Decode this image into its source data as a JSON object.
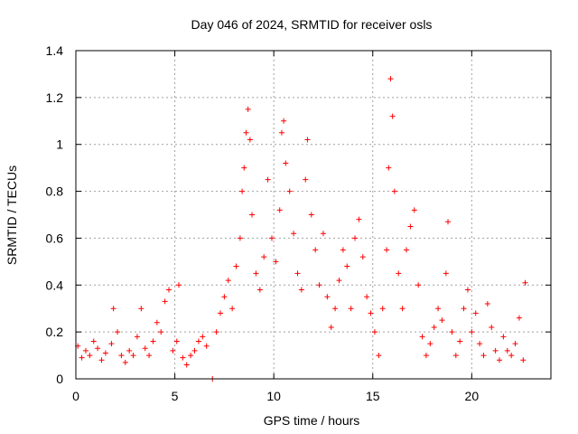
{
  "chart_data": {
    "type": "scatter",
    "title": "Day 046 of 2024, SRMTID for receiver osls",
    "xlabel": "GPS time / hours",
    "ylabel": "SRMTID / TECUs",
    "xlim": [
      0,
      24
    ],
    "ylim": [
      0,
      1.4
    ],
    "xticks": [
      0,
      5,
      10,
      15,
      20
    ],
    "xtick_labels": [
      "0",
      "5",
      "10",
      "15",
      "20"
    ],
    "yticks": [
      0,
      0.2,
      0.4,
      0.6,
      0.8,
      1,
      1.2,
      1.4
    ],
    "ytick_labels": [
      "0",
      "0.2",
      "0.4",
      "0.6",
      "0.8",
      "1",
      "1.2",
      "1.4"
    ],
    "grid": true,
    "marker": "plus",
    "color": "#ff0000",
    "series": [
      {
        "name": "SRMTID",
        "points": [
          [
            0.1,
            0.14
          ],
          [
            0.3,
            0.09
          ],
          [
            0.5,
            0.12
          ],
          [
            0.7,
            0.1
          ],
          [
            0.9,
            0.16
          ],
          [
            1.1,
            0.13
          ],
          [
            1.3,
            0.08
          ],
          [
            1.5,
            0.11
          ],
          [
            1.8,
            0.15
          ],
          [
            1.9,
            0.3
          ],
          [
            2.1,
            0.2
          ],
          [
            2.3,
            0.1
          ],
          [
            2.5,
            0.07
          ],
          [
            2.7,
            0.12
          ],
          [
            2.9,
            0.1
          ],
          [
            3.1,
            0.18
          ],
          [
            3.3,
            0.3
          ],
          [
            3.5,
            0.13
          ],
          [
            3.7,
            0.1
          ],
          [
            3.9,
            0.16
          ],
          [
            4.1,
            0.24
          ],
          [
            4.3,
            0.2
          ],
          [
            4.5,
            0.33
          ],
          [
            4.7,
            0.38
          ],
          [
            4.9,
            0.12
          ],
          [
            5.1,
            0.16
          ],
          [
            5.2,
            0.4
          ],
          [
            5.4,
            0.09
          ],
          [
            5.6,
            0.06
          ],
          [
            5.8,
            0.1
          ],
          [
            6.0,
            0.12
          ],
          [
            6.2,
            0.16
          ],
          [
            6.4,
            0.18
          ],
          [
            6.6,
            0.14
          ],
          [
            6.9,
            0.0
          ],
          [
            7.1,
            0.2
          ],
          [
            7.3,
            0.28
          ],
          [
            7.5,
            0.35
          ],
          [
            7.7,
            0.42
          ],
          [
            7.9,
            0.3
          ],
          [
            8.1,
            0.48
          ],
          [
            8.3,
            0.6
          ],
          [
            8.4,
            0.8
          ],
          [
            8.5,
            0.9
          ],
          [
            8.6,
            1.05
          ],
          [
            8.7,
            1.15
          ],
          [
            8.8,
            1.02
          ],
          [
            8.9,
            0.7
          ],
          [
            9.1,
            0.45
          ],
          [
            9.3,
            0.38
          ],
          [
            9.5,
            0.52
          ],
          [
            9.7,
            0.85
          ],
          [
            9.9,
            0.6
          ],
          [
            10.1,
            0.5
          ],
          [
            10.3,
            0.72
          ],
          [
            10.4,
            1.05
          ],
          [
            10.5,
            1.1
          ],
          [
            10.6,
            0.92
          ],
          [
            10.8,
            0.8
          ],
          [
            11.0,
            0.62
          ],
          [
            11.2,
            0.45
          ],
          [
            11.4,
            0.38
          ],
          [
            11.6,
            0.85
          ],
          [
            11.7,
            1.02
          ],
          [
            11.9,
            0.7
          ],
          [
            12.1,
            0.55
          ],
          [
            12.3,
            0.4
          ],
          [
            12.5,
            0.62
          ],
          [
            12.7,
            0.35
          ],
          [
            12.9,
            0.22
          ],
          [
            13.1,
            0.3
          ],
          [
            13.3,
            0.42
          ],
          [
            13.5,
            0.55
          ],
          [
            13.7,
            0.48
          ],
          [
            13.9,
            0.3
          ],
          [
            14.1,
            0.6
          ],
          [
            14.3,
            0.68
          ],
          [
            14.5,
            0.52
          ],
          [
            14.7,
            0.35
          ],
          [
            14.9,
            0.28
          ],
          [
            15.1,
            0.2
          ],
          [
            15.3,
            0.1
          ],
          [
            15.5,
            0.3
          ],
          [
            15.7,
            0.55
          ],
          [
            15.8,
            0.9
          ],
          [
            15.9,
            1.28
          ],
          [
            16.0,
            1.12
          ],
          [
            16.1,
            0.8
          ],
          [
            16.3,
            0.45
          ],
          [
            16.5,
            0.3
          ],
          [
            16.7,
            0.55
          ],
          [
            16.9,
            0.65
          ],
          [
            17.1,
            0.72
          ],
          [
            17.3,
            0.4
          ],
          [
            17.5,
            0.18
          ],
          [
            17.7,
            0.1
          ],
          [
            17.9,
            0.15
          ],
          [
            18.1,
            0.22
          ],
          [
            18.3,
            0.3
          ],
          [
            18.5,
            0.25
          ],
          [
            18.7,
            0.45
          ],
          [
            18.8,
            0.67
          ],
          [
            19.0,
            0.2
          ],
          [
            19.2,
            0.1
          ],
          [
            19.4,
            0.16
          ],
          [
            19.6,
            0.3
          ],
          [
            19.8,
            0.38
          ],
          [
            20.0,
            0.2
          ],
          [
            20.2,
            0.28
          ],
          [
            20.4,
            0.15
          ],
          [
            20.6,
            0.1
          ],
          [
            20.8,
            0.32
          ],
          [
            21.0,
            0.22
          ],
          [
            21.2,
            0.12
          ],
          [
            21.4,
            0.08
          ],
          [
            21.6,
            0.18
          ],
          [
            21.8,
            0.12
          ],
          [
            22.0,
            0.1
          ],
          [
            22.2,
            0.15
          ],
          [
            22.4,
            0.26
          ],
          [
            22.6,
            0.08
          ],
          [
            22.7,
            0.41
          ]
        ]
      }
    ]
  }
}
